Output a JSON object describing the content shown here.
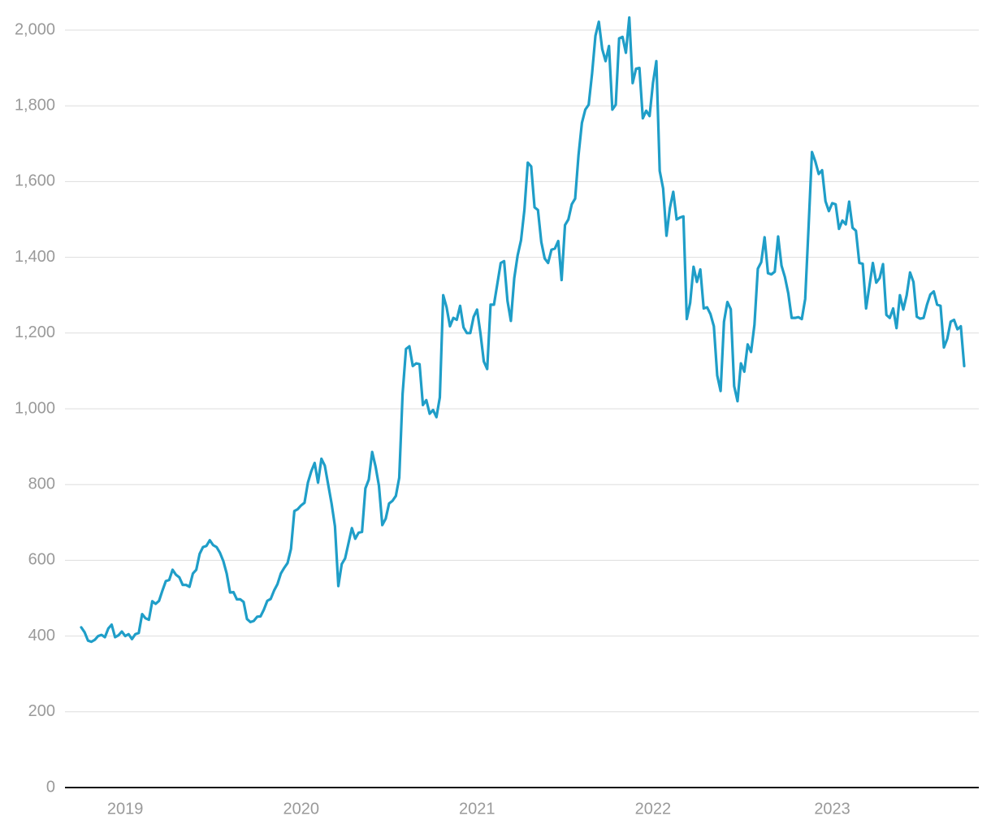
{
  "chart_data": {
    "type": "line",
    "categories": [
      null,
      null,
      null,
      null,
      null,
      null,
      null,
      null,
      null,
      null,
      null,
      null,
      null,
      "2019",
      null,
      null,
      null,
      null,
      null,
      null,
      null,
      null,
      null,
      null,
      null,
      null,
      null,
      null,
      null,
      null,
      null,
      null,
      null,
      null,
      null,
      null,
      null,
      null,
      null,
      null,
      null,
      null,
      null,
      null,
      null,
      null,
      null,
      null,
      null,
      null,
      null,
      null,
      null,
      null,
      null,
      null,
      null,
      null,
      null,
      null,
      null,
      null,
      null,
      null,
      null,
      "2020",
      null,
      null,
      null,
      null,
      null,
      null,
      null,
      null,
      null,
      null,
      null,
      null,
      null,
      null,
      null,
      null,
      null,
      null,
      null,
      null,
      null,
      null,
      null,
      null,
      null,
      null,
      null,
      null,
      null,
      null,
      null,
      null,
      null,
      null,
      null,
      null,
      null,
      null,
      null,
      null,
      null,
      null,
      null,
      null,
      null,
      null,
      null,
      null,
      null,
      null,
      null,
      "2021",
      null,
      null,
      null,
      null,
      null,
      null,
      null,
      null,
      null,
      null,
      null,
      null,
      null,
      null,
      null,
      null,
      null,
      null,
      null,
      null,
      null,
      null,
      null,
      null,
      null,
      null,
      null,
      null,
      null,
      null,
      null,
      null,
      null,
      null,
      null,
      null,
      null,
      null,
      null,
      null,
      null,
      null,
      null,
      null,
      null,
      null,
      null,
      null,
      null,
      null,
      null,
      "2022",
      null,
      null,
      null,
      null,
      null,
      null,
      null,
      null,
      null,
      null,
      null,
      null,
      null,
      null,
      null,
      null,
      null,
      null,
      null,
      null,
      null,
      null,
      null,
      null,
      null,
      null,
      null,
      null,
      null,
      null,
      null,
      null,
      null,
      null,
      null,
      null,
      null,
      null,
      null,
      null,
      null,
      null,
      null,
      null,
      null,
      null,
      null,
      null,
      null,
      null,
      null,
      null,
      "2023",
      null,
      null,
      null,
      null,
      null,
      null,
      null,
      null,
      null,
      null,
      null,
      null,
      null,
      null,
      null,
      null,
      null,
      null,
      null,
      null,
      null,
      null,
      null,
      null,
      null,
      null,
      null,
      null,
      null,
      null,
      null,
      null,
      null,
      null,
      null,
      null,
      null,
      null,
      null
    ],
    "values": [
      423,
      410,
      388,
      385,
      390,
      400,
      403,
      397,
      420,
      430,
      397,
      402,
      412,
      400,
      405,
      392,
      405,
      408,
      458,
      447,
      443,
      492,
      485,
      493,
      520,
      545,
      548,
      575,
      562,
      555,
      535,
      535,
      530,
      565,
      575,
      617,
      635,
      638,
      653,
      640,
      635,
      620,
      598,
      565,
      515,
      516,
      497,
      497,
      490,
      445,
      437,
      440,
      451,
      452,
      470,
      493,
      498,
      520,
      537,
      565,
      580,
      593,
      630,
      730,
      735,
      745,
      752,
      805,
      835,
      857,
      805,
      868,
      850,
      800,
      750,
      690,
      532,
      590,
      605,
      645,
      685,
      657,
      673,
      675,
      790,
      813,
      886,
      848,
      797,
      693,
      710,
      750,
      757,
      770,
      818,
      1040,
      1158,
      1165,
      1113,
      1120,
      1118,
      1010,
      1023,
      987,
      997,
      978,
      1030,
      1300,
      1268,
      1218,
      1240,
      1235,
      1272,
      1215,
      1200,
      1200,
      1243,
      1262,
      1200,
      1125,
      1105,
      1275,
      1275,
      1330,
      1385,
      1390,
      1285,
      1232,
      1345,
      1405,
      1445,
      1525,
      1650,
      1640,
      1532,
      1525,
      1440,
      1397,
      1385,
      1420,
      1423,
      1443,
      1340,
      1485,
      1500,
      1540,
      1555,
      1670,
      1755,
      1790,
      1803,
      1885,
      1985,
      2022,
      1950,
      1918,
      1958,
      1790,
      1803,
      1978,
      1982,
      1940,
      2033,
      1860,
      1898,
      1900,
      1767,
      1787,
      1773,
      1860,
      1918,
      1628,
      1582,
      1457,
      1530,
      1573,
      1500,
      1505,
      1508,
      1237,
      1280,
      1375,
      1335,
      1368,
      1265,
      1268,
      1250,
      1218,
      1088,
      1047,
      1230,
      1282,
      1263,
      1060,
      1020,
      1120,
      1098,
      1170,
      1150,
      1222,
      1370,
      1387,
      1453,
      1358,
      1355,
      1362,
      1455,
      1378,
      1348,
      1305,
      1240,
      1240,
      1242,
      1237,
      1290,
      1480,
      1678,
      1653,
      1620,
      1630,
      1548,
      1522,
      1543,
      1540,
      1475,
      1497,
      1487,
      1547,
      1478,
      1470,
      1385,
      1383,
      1265,
      1325,
      1385,
      1333,
      1345,
      1382,
      1248,
      1240,
      1265,
      1213,
      1300,
      1262,
      1300,
      1360,
      1335,
      1243,
      1238,
      1240,
      1275,
      1302,
      1310,
      1275,
      1272,
      1162,
      1185,
      1230,
      1235,
      1210,
      1218,
      1113
    ],
    "color": "#1f9ec8",
    "ylim": [
      0,
      2000
    ],
    "yticks": [
      0,
      200,
      400,
      600,
      800,
      {
        "value": 1000,
        "label": "1,000"
      },
      {
        "value": 1200,
        "label": "1,200"
      },
      {
        "value": 1400,
        "label": "1,400"
      },
      {
        "value": 1600,
        "label": "1,600"
      },
      {
        "value": 1800,
        "label": "1,800"
      },
      {
        "value": 2000,
        "label": "2,000"
      }
    ],
    "grid": true
  }
}
